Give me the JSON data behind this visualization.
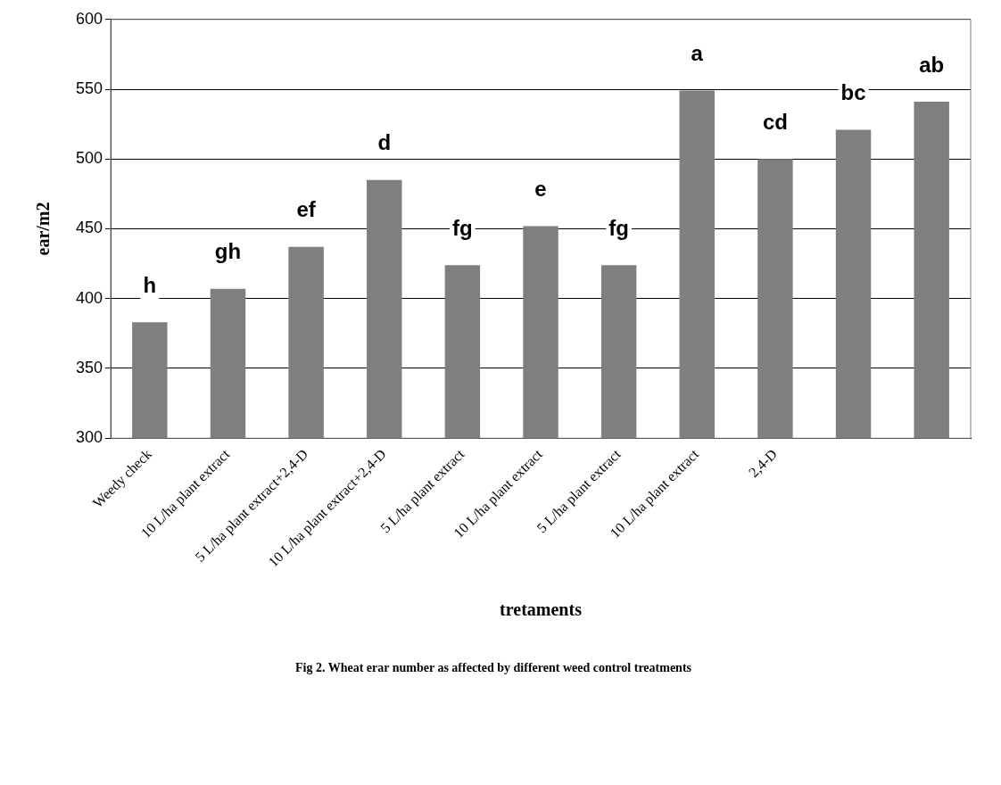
{
  "chart_data": {
    "type": "bar",
    "title": "Fig 2. Wheat erar number as affected by different weed control treatments",
    "xlabel": "tretaments",
    "ylabel": "ear/m2",
    "categories": [
      "Weedy check",
      "10 L/ha plant extract",
      "5 L/ha plant extract+2,4-D",
      "10 L/ha plant extract+2,4-D",
      "5 L/ha plant extract",
      "10 L/ha plant extract",
      "5 L/ha plant extract",
      "10 L/ha plant extract",
      "2,4-D",
      null,
      null
    ],
    "values": [
      383,
      407,
      437,
      485,
      424,
      452,
      424,
      549,
      500,
      521,
      541
    ],
    "value_labels": [
      "h",
      "gh",
      "ef",
      "d",
      "fg",
      "e",
      "fg",
      "a",
      "cd",
      "bc",
      "ab"
    ],
    "color": "#7f7f7f",
    "ylim": [
      300,
      600
    ],
    "yticks": [
      300,
      350,
      400,
      450,
      500,
      550,
      600
    ],
    "grid": "y",
    "legend": false
  }
}
